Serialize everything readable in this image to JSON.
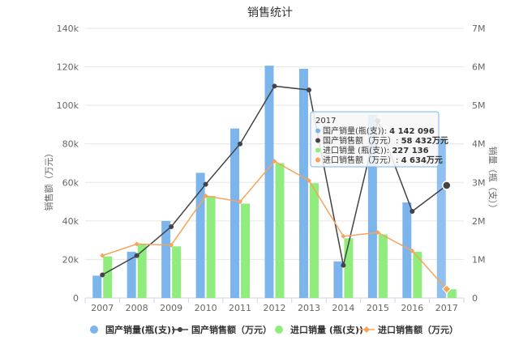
{
  "chart_data": {
    "type": "bar",
    "title": "销售统计",
    "categories": [
      "2007",
      "2008",
      "2009",
      "2010",
      "2011",
      "2012",
      "2013",
      "2014",
      "2015",
      "2016",
      "2017"
    ],
    "y_left": {
      "label": "销售额（万元）",
      "min": 0,
      "max": 140000,
      "ticks": [
        "0",
        "20k",
        "40k",
        "60k",
        "80k",
        "100k",
        "120k",
        "140k"
      ]
    },
    "y_right": {
      "label": "销量（瓶（支））",
      "min": 0,
      "max": 7000000,
      "ticks": [
        "0",
        "1M",
        "2M",
        "3M",
        "4M",
        "5M",
        "6M",
        "7M"
      ]
    },
    "grid": true,
    "legend_position": "bottom",
    "series": [
      {
        "name": "国产销量(瓶(支))",
        "type": "bar",
        "axis": "right",
        "color": "#7cb5ec",
        "values": [
          580000,
          1200000,
          2000000,
          3250000,
          4400000,
          6030000,
          5950000,
          950000,
          4750000,
          2480000,
          4142096
        ]
      },
      {
        "name": "国产销售额（万元）",
        "type": "line",
        "axis": "left",
        "color": "#434348",
        "values": [
          12000,
          22000,
          37000,
          59000,
          80000,
          110000,
          108000,
          17000,
          92000,
          45000,
          58432
        ]
      },
      {
        "name": "进口销量 (瓶(支))",
        "type": "bar",
        "axis": "right",
        "color": "#90ed7d",
        "values": [
          1080000,
          1400000,
          1340000,
          2650000,
          2450000,
          3500000,
          2980000,
          1550000,
          1650000,
          1200000,
          227136
        ]
      },
      {
        "name": "进口销售额（万元）",
        "type": "line",
        "axis": "left",
        "color": "#f7a35c",
        "values": [
          22000,
          28000,
          27500,
          53000,
          50000,
          71000,
          61000,
          32000,
          34000,
          24500,
          4634
        ]
      }
    ],
    "tooltip": {
      "category": "2017",
      "rows": [
        {
          "label": "国产销量(瓶(支)): ",
          "value": "4 142 096",
          "color": "#7cb5ec"
        },
        {
          "label": "国产销售额（万元）: ",
          "value": "58 432万元",
          "color": "#434348"
        },
        {
          "label": "进口销量 (瓶(支)): ",
          "value": "227 136",
          "color": "#90ed7d"
        },
        {
          "label": "进口销售额（万元）: ",
          "value": "4 634万元",
          "color": "#f7a35c"
        }
      ]
    }
  }
}
